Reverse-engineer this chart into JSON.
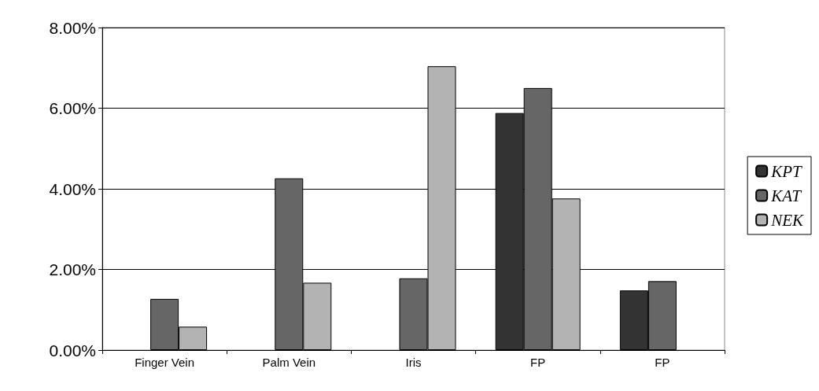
{
  "chart_data": {
    "type": "bar",
    "categories": [
      "Finger Vein",
      "Palm Vein",
      "Iris",
      "FP",
      "FP"
    ],
    "series": [
      {
        "name": "KPT",
        "color": "#333333",
        "values": [
          null,
          null,
          null,
          5.88,
          1.48
        ]
      },
      {
        "name": "KAT",
        "color": "#666666",
        "values": [
          1.27,
          4.26,
          1.78,
          6.5,
          1.71
        ]
      },
      {
        "name": "NEK",
        "color": "#b3b3b3",
        "values": [
          0.58,
          1.67,
          7.04,
          3.76,
          null
        ]
      }
    ],
    "ylim": [
      0,
      8
    ],
    "yticks": [
      {
        "value": 0,
        "label": "0.00%"
      },
      {
        "value": 2,
        "label": "2.00%"
      },
      {
        "value": 4,
        "label": "4.00%"
      },
      {
        "value": 6,
        "label": "6.00%"
      },
      {
        "value": 8,
        "label": "8.00%"
      }
    ],
    "grid": "y",
    "legend": "right"
  }
}
